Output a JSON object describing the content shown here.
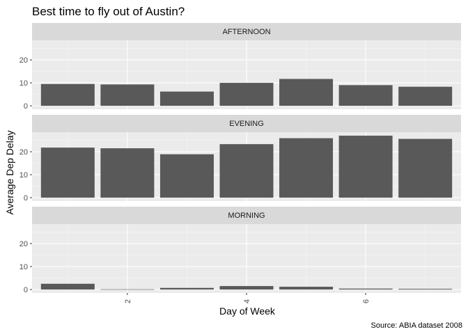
{
  "chart_data": {
    "type": "bar",
    "title": "Best time to fly out of Austin?",
    "caption": "Source: ABIA dataset 2008",
    "xlabel": "Day of Week",
    "ylabel": "Average Dep Delay",
    "x": [
      1,
      2,
      3,
      4,
      5,
      6,
      7
    ],
    "xticks": [
      "2",
      "4",
      "6"
    ],
    "yticks": [
      "0",
      "10",
      "20"
    ],
    "ylim": [
      -1.5,
      28.5
    ],
    "grid": true,
    "bar_color": "#595959",
    "panel_bg": "#ebebeb",
    "strip_bg": "#d9d9d9",
    "facets": [
      {
        "name": "AFTERNOON",
        "values": [
          9.5,
          9.3,
          6.2,
          10.0,
          11.7,
          9.0,
          8.3
        ]
      },
      {
        "name": "EVENING",
        "values": [
          21.8,
          21.5,
          18.9,
          23.3,
          25.9,
          27.0,
          25.6
        ]
      },
      {
        "name": "MORNING",
        "values": [
          2.5,
          0.1,
          0.7,
          1.5,
          1.2,
          0.4,
          0.3
        ]
      }
    ]
  }
}
